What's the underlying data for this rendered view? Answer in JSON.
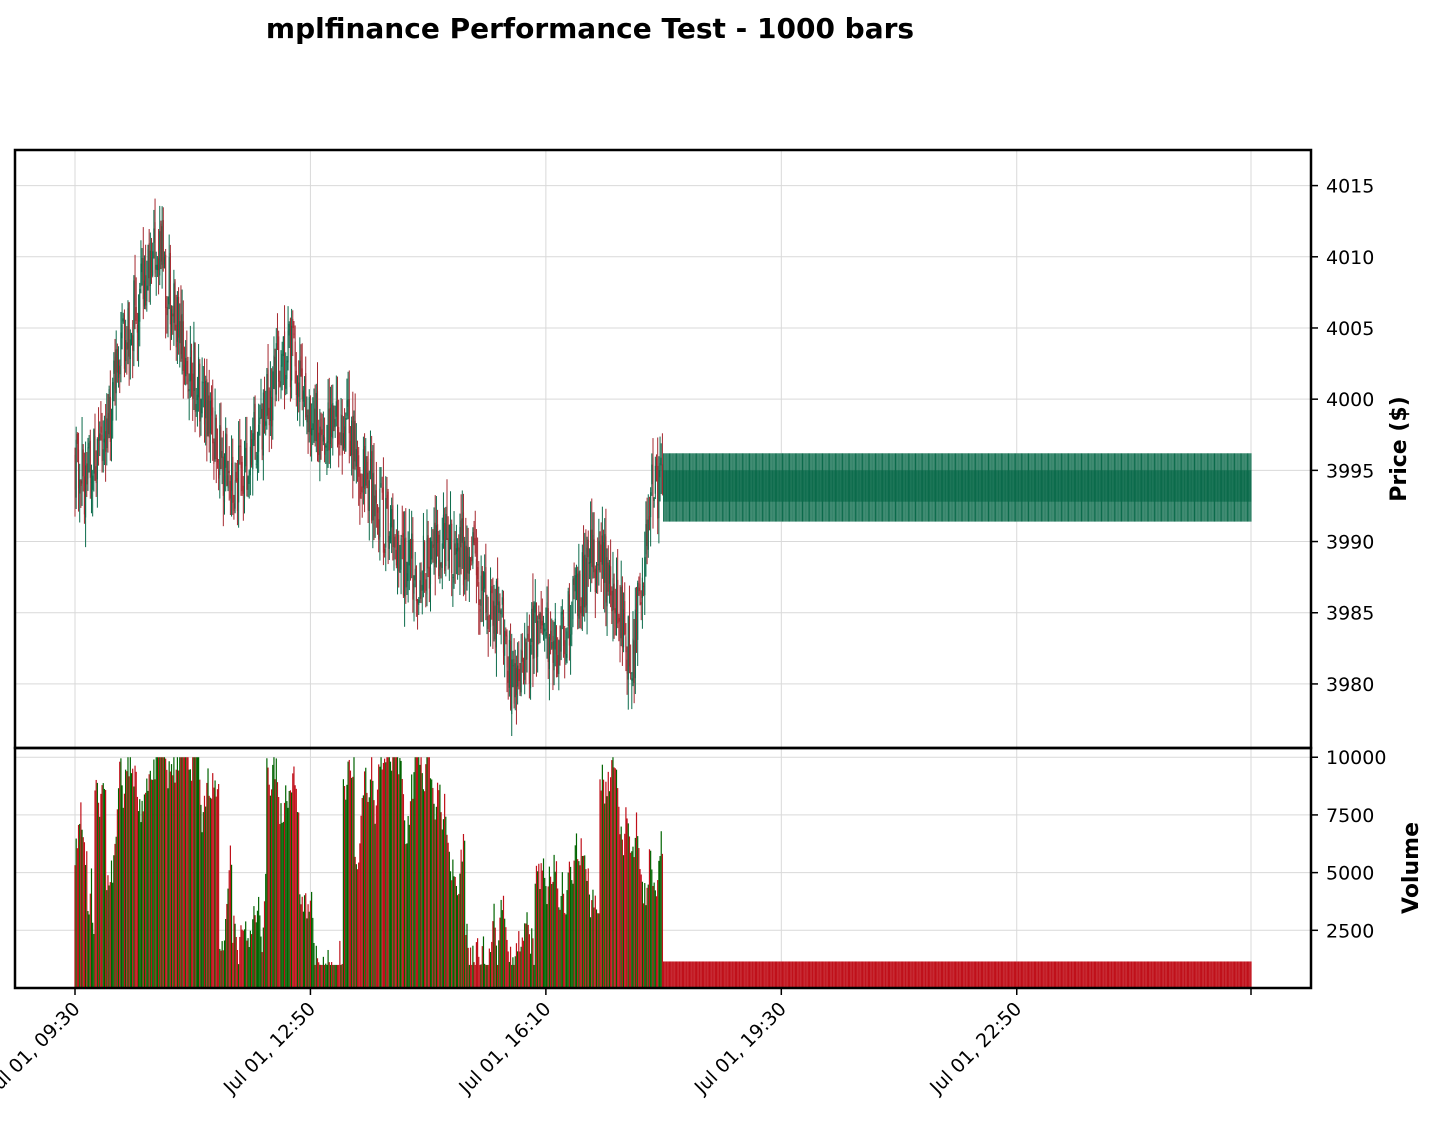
{
  "chart_data": {
    "type": "candlestick",
    "title": "mplfinance Performance Test - 1000 bars",
    "bar_count": 1000,
    "price_panel": {
      "ylabel": "Price ($)",
      "ylim": [
        3975.5,
        4017.5
      ],
      "yticks": [
        3980,
        3985,
        3990,
        3995,
        4000,
        4005,
        4010,
        4015
      ]
    },
    "volume_panel": {
      "ylabel": "Volume",
      "ylim": [
        0,
        10400
      ],
      "yticks": [
        2500,
        5000,
        7500,
        10000
      ]
    },
    "x_ticks": [
      "Jul 01, 09:30",
      "Jul 01, 12:50",
      "Jul 01, 16:10",
      "Jul 01, 19:30",
      "Jul 01, 22:50"
    ],
    "x_tick_bar_index": [
      0,
      200,
      400,
      600,
      800
    ],
    "grid": true,
    "colors": {
      "up_candle": "#0b6b4b",
      "down_candle": "#a5282f",
      "up_volume": "#006400",
      "down_volume": "#c0101a"
    },
    "price_path_keypoints": [
      [
        0,
        3996
      ],
      [
        10,
        3994
      ],
      [
        20,
        3996
      ],
      [
        30,
        3999
      ],
      [
        40,
        4003
      ],
      [
        55,
        4007
      ],
      [
        68,
        4010
      ],
      [
        72,
        4011
      ],
      [
        80,
        4008
      ],
      [
        92,
        4004
      ],
      [
        105,
        4001
      ],
      [
        115,
        3998
      ],
      [
        125,
        3996
      ],
      [
        135,
        3994
      ],
      [
        145,
        3995
      ],
      [
        158,
        3998
      ],
      [
        170,
        4001
      ],
      [
        180,
        4004
      ],
      [
        190,
        4002
      ],
      [
        200,
        3999
      ],
      [
        210,
        3998
      ],
      [
        220,
        3999
      ],
      [
        232,
        3998
      ],
      [
        240,
        3996
      ],
      [
        250,
        3994
      ],
      [
        260,
        3992
      ],
      [
        275,
        3989
      ],
      [
        290,
        3988
      ],
      [
        305,
        3989
      ],
      [
        320,
        3990
      ],
      [
        335,
        3989
      ],
      [
        350,
        3986
      ],
      [
        365,
        3984
      ],
      [
        372,
        3980
      ],
      [
        380,
        3981
      ],
      [
        395,
        3984
      ],
      [
        405,
        3983
      ],
      [
        415,
        3983
      ],
      [
        428,
        3986
      ],
      [
        440,
        3989
      ],
      [
        455,
        3988
      ],
      [
        463,
        3986
      ],
      [
        470,
        3983
      ],
      [
        475,
        3981
      ],
      [
        480,
        3986
      ],
      [
        487,
        3990
      ],
      [
        492,
        3994
      ],
      [
        500,
        3994
      ],
      [
        999,
        3994
      ]
    ],
    "tail_candle": {
      "open": 3992.8,
      "close": 3995.0,
      "high": 3996.2,
      "low": 3991.4,
      "start_index": 500
    },
    "tail_volume": 1150,
    "volume_range_active": [
      1000,
      10000
    ]
  }
}
